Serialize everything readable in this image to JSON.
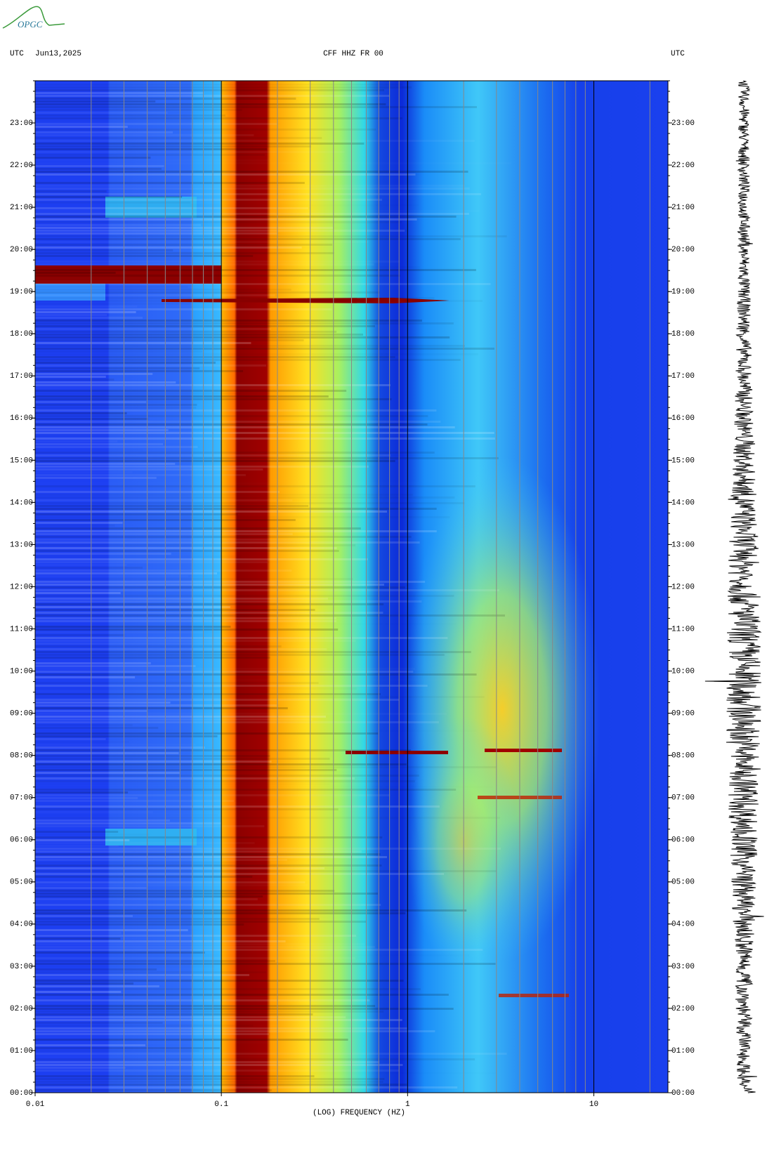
{
  "chart_data": {
    "type": "spectrogram",
    "logo": "OPGC",
    "left_header": "UTC",
    "date": "Jun13,2025",
    "title": "CFF HHZ FR 00",
    "right_header": "UTC",
    "xlabel": "(LOG) FREQUENCY (HZ)",
    "xscale": "log",
    "xlim": [
      0.01,
      25
    ],
    "xticks": [
      0.01,
      0.1,
      1,
      10
    ],
    "ylim": [
      0,
      24
    ],
    "yticks": [
      {
        "value": 0,
        "label": "00:00"
      },
      {
        "value": 1,
        "label": "01:00"
      },
      {
        "value": 2,
        "label": "02:00"
      },
      {
        "value": 3,
        "label": "03:00"
      },
      {
        "value": 4,
        "label": "04:00"
      },
      {
        "value": 5,
        "label": "05:00"
      },
      {
        "value": 6,
        "label": "06:00"
      },
      {
        "value": 7,
        "label": "07:00"
      },
      {
        "value": 8,
        "label": "08:00"
      },
      {
        "value": 9,
        "label": "09:00"
      },
      {
        "value": 10,
        "label": "10:00"
      },
      {
        "value": 11,
        "label": "11:00"
      },
      {
        "value": 12,
        "label": "12:00"
      },
      {
        "value": 13,
        "label": "13:00"
      },
      {
        "value": 14,
        "label": "14:00"
      },
      {
        "value": 15,
        "label": "15:00"
      },
      {
        "value": 16,
        "label": "16:00"
      },
      {
        "value": 17,
        "label": "17:00"
      },
      {
        "value": 18,
        "label": "18:00"
      },
      {
        "value": 19,
        "label": "19:00"
      },
      {
        "value": 20,
        "label": "20:00"
      },
      {
        "value": 21,
        "label": "21:00"
      },
      {
        "value": 22,
        "label": "22:00"
      },
      {
        "value": 23,
        "label": "23:00"
      }
    ],
    "grid": true
  }
}
